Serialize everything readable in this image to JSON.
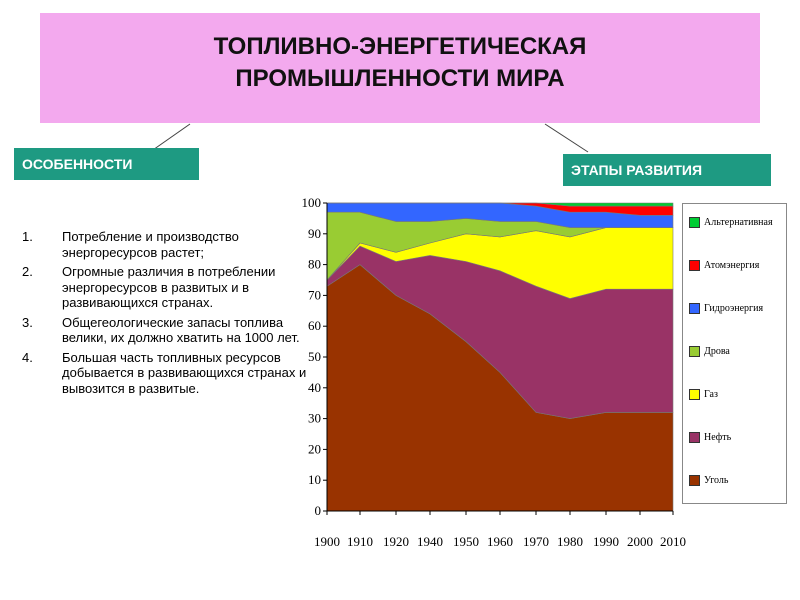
{
  "title": {
    "line1": "ТОПЛИВНО-ЭНЕРГЕТИЧЕСКАЯ",
    "line2": "ПРОМЫШЛЕННОСТИ МИРА",
    "background": "#f3a9ee"
  },
  "tags": {
    "left": "ОСОБЕННОСТИ",
    "right": "ЭТАПЫ РАЗВИТИЯ",
    "color": "#1e9a82"
  },
  "features": [
    {
      "num": "1.",
      "text": "Потребление и производство энергоресурсов растет;"
    },
    {
      "num": "2.",
      "text": " Огромные различия в потреблении энергоресурсов в развитых и  в развивающихся странах."
    },
    {
      "num": "3.",
      "text": "Общегеологические запасы топлива велики, их должно хватить на 1000 лет."
    },
    {
      "num": "4.",
      "text": "Большая часть топливных ресурсов добывается в развивающихся странах и вывозится в развитые."
    }
  ],
  "chart_data": {
    "type": "area",
    "stacked": true,
    "x": [
      1900,
      1910,
      1920,
      1940,
      1950,
      1960,
      1970,
      1980,
      1990,
      2000,
      2010
    ],
    "x_tick_labels": [
      "1900",
      "1910",
      "1920",
      "1940",
      "1950",
      "1960",
      "1970",
      "1980",
      "1990",
      "2000",
      "2010"
    ],
    "ylim": [
      0,
      100
    ],
    "y_ticks": [
      0,
      10,
      20,
      30,
      40,
      50,
      60,
      70,
      80,
      90,
      100
    ],
    "grid": false,
    "legend_position": "right",
    "series": [
      {
        "name": "Уголь",
        "color": "#993300",
        "values": [
          73,
          80,
          70,
          64,
          55,
          45,
          32,
          30,
          32,
          32,
          32
        ]
      },
      {
        "name": "Нефть",
        "color": "#993366",
        "values": [
          2,
          6,
          11,
          19,
          26,
          33,
          41,
          39,
          40,
          40,
          40
        ]
      },
      {
        "name": "Газ",
        "color": "#ffff00",
        "values": [
          0,
          1,
          3,
          4,
          9,
          11,
          18,
          20,
          20,
          20,
          20
        ]
      },
      {
        "name": "Дрова",
        "color": "#99cc33",
        "values": [
          22,
          10,
          10,
          7,
          5,
          5,
          3,
          3,
          0,
          0,
          0
        ]
      },
      {
        "name": "Гидроэнергия",
        "color": "#3366ff",
        "values": [
          3,
          3,
          6,
          6,
          5,
          6,
          5,
          5,
          5,
          4,
          4
        ]
      },
      {
        "name": "Атомэнергия",
        "color": "#ff0000",
        "values": [
          0,
          0,
          0,
          0,
          0,
          0,
          1,
          2,
          2,
          3,
          3
        ]
      },
      {
        "name": "Альтернативная",
        "color": "#00cc33",
        "values": [
          0,
          0,
          0,
          0,
          0,
          0,
          0,
          1,
          1,
          1,
          1
        ]
      }
    ],
    "legend_order": [
      "Альтернативная",
      "Атомэнергия",
      "Гидроэнергия",
      "Дрова",
      "Газ",
      "Нефть",
      "Уголь"
    ]
  }
}
